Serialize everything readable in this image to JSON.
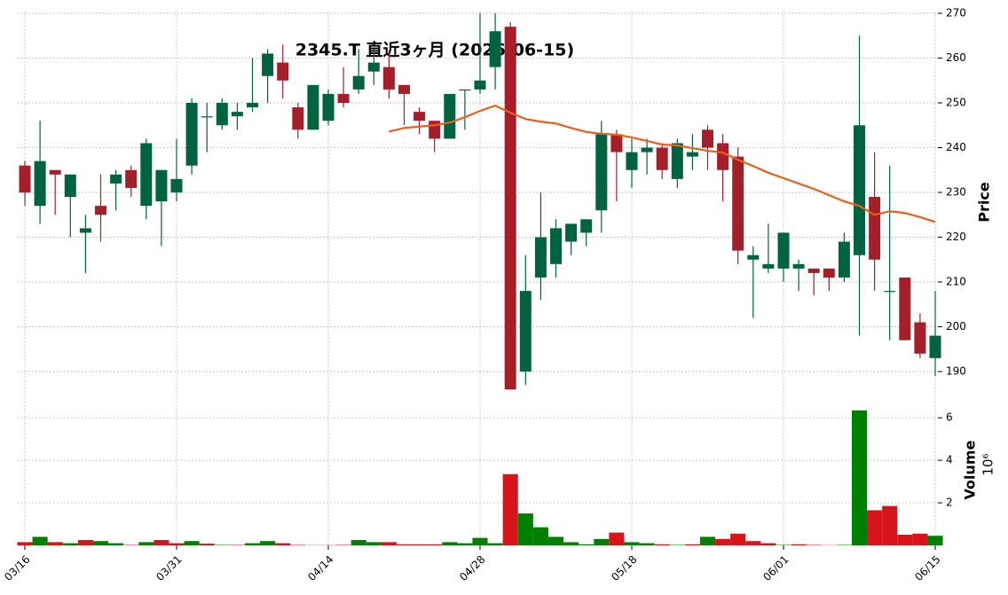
{
  "chart_data": {
    "type": "candlestick",
    "title": "2345.T 直近3ヶ月 (2026-06-15)",
    "categories": [
      "03/16",
      null,
      null,
      null,
      null,
      null,
      null,
      null,
      null,
      null,
      "03/31",
      null,
      null,
      null,
      null,
      null,
      null,
      null,
      null,
      null,
      "04/14",
      null,
      null,
      null,
      null,
      null,
      null,
      null,
      null,
      null,
      "04/28",
      null,
      null,
      null,
      null,
      null,
      null,
      null,
      null,
      null,
      "05/18",
      null,
      null,
      null,
      null,
      null,
      null,
      null,
      null,
      null,
      "06/01",
      null,
      null,
      null,
      null,
      null,
      null,
      null,
      null,
      null,
      "06/15"
    ],
    "open": [
      236,
      227,
      235,
      229,
      221,
      227,
      232,
      235,
      227,
      228,
      230,
      236,
      247,
      245,
      247,
      249,
      256,
      259,
      249,
      244,
      246,
      252,
      253,
      257,
      258,
      254,
      248,
      246,
      242,
      253,
      253,
      258,
      267,
      190,
      211,
      214,
      219,
      221,
      226,
      243,
      235,
      239,
      240,
      233,
      238,
      244,
      241,
      238,
      215,
      213,
      213,
      213,
      213,
      213,
      211,
      216,
      229,
      208,
      211,
      201,
      193
    ],
    "high": [
      237,
      246,
      235,
      234,
      225,
      234,
      235,
      236,
      242,
      235,
      242,
      251,
      250,
      251,
      250,
      260,
      262,
      263,
      250,
      254,
      253,
      258,
      262,
      262,
      261,
      254,
      249,
      246,
      252,
      253,
      270,
      270,
      268,
      216,
      230,
      224,
      223,
      224,
      246,
      244,
      242,
      242,
      241,
      242,
      243,
      245,
      243,
      240,
      218,
      223,
      221,
      215,
      213,
      213,
      221,
      265,
      239,
      236,
      211,
      203,
      208
    ],
    "low": [
      227,
      223,
      225,
      220,
      212,
      219,
      226,
      229,
      224,
      218,
      228,
      234,
      239,
      244,
      244,
      248,
      250,
      251,
      242,
      244,
      245,
      249,
      252,
      254,
      251,
      245,
      243,
      239,
      242,
      244,
      252,
      253,
      186,
      187,
      206,
      211,
      216,
      218,
      221,
      228,
      231,
      234,
      233,
      231,
      235,
      235,
      228,
      214,
      202,
      212,
      210,
      208,
      207,
      208,
      210,
      198,
      208,
      197,
      197,
      193,
      189
    ],
    "close": [
      230,
      237,
      234,
      234,
      222,
      225,
      234,
      231,
      241,
      235,
      233,
      250,
      247,
      250,
      248,
      250,
      261,
      255,
      244,
      254,
      252,
      250,
      256,
      259,
      253,
      252,
      246,
      242,
      252,
      253,
      255,
      266,
      186,
      208,
      220,
      222,
      223,
      224,
      243,
      239,
      239,
      240,
      235,
      241,
      239,
      240,
      235,
      217,
      216,
      214,
      221,
      214,
      212,
      211,
      219,
      245,
      215,
      208,
      197,
      194,
      198
    ],
    "volume": [
      0.15,
      0.4,
      0.15,
      0.1,
      0.25,
      0.2,
      0.1,
      0.02,
      0.15,
      0.25,
      0.1,
      0.2,
      0.08,
      0.02,
      0.02,
      0.1,
      0.2,
      0.1,
      0.02,
      0.01,
      0.01,
      0.02,
      0.25,
      0.15,
      0.15,
      0.05,
      0.05,
      0.05,
      0.15,
      0.1,
      0.35,
      0.1,
      3.35,
      1.5,
      0.85,
      0.4,
      0.15,
      0.05,
      0.3,
      0.6,
      0.15,
      0.1,
      0.05,
      0.02,
      0.05,
      0.4,
      0.3,
      0.55,
      0.2,
      0.1,
      0.02,
      0.05,
      0.02,
      0.01,
      0.02,
      6.35,
      1.65,
      1.85,
      0.5,
      0.55,
      0.45
    ],
    "ma": [
      null,
      null,
      null,
      null,
      null,
      null,
      null,
      null,
      null,
      null,
      null,
      null,
      null,
      null,
      null,
      null,
      null,
      null,
      null,
      null,
      null,
      null,
      null,
      null,
      243.6,
      244.4,
      244.7,
      245,
      245.6,
      246.8,
      248.2,
      249.4,
      247.8,
      246.4,
      245.8,
      245.4,
      244.4,
      243.5,
      243.1,
      242.9,
      242.3,
      241.5,
      240.7,
      240.5,
      239.9,
      239.3,
      238.9,
      237.3,
      235.9,
      234.4,
      233.2,
      232,
      230.8,
      229.4,
      228,
      227,
      225,
      225.8,
      225.4,
      224.5,
      223.4
    ],
    "up_color": "#006340",
    "down_color": "#a51f2a",
    "volume_up_color": "#008000",
    "volume_down_color": "#d7141a",
    "ma_color": "#e8601c",
    "ylim": [
      188,
      270.5
    ],
    "yticks": [
      190,
      200,
      210,
      220,
      230,
      240,
      250,
      260,
      270
    ],
    "volume_ylim": [
      0,
      7.3
    ],
    "volume_yticks": [
      2,
      4,
      6
    ],
    "y_label": "Price",
    "volume_label": "Volume",
    "volume_exponent": "10⁶",
    "grid": true
  }
}
